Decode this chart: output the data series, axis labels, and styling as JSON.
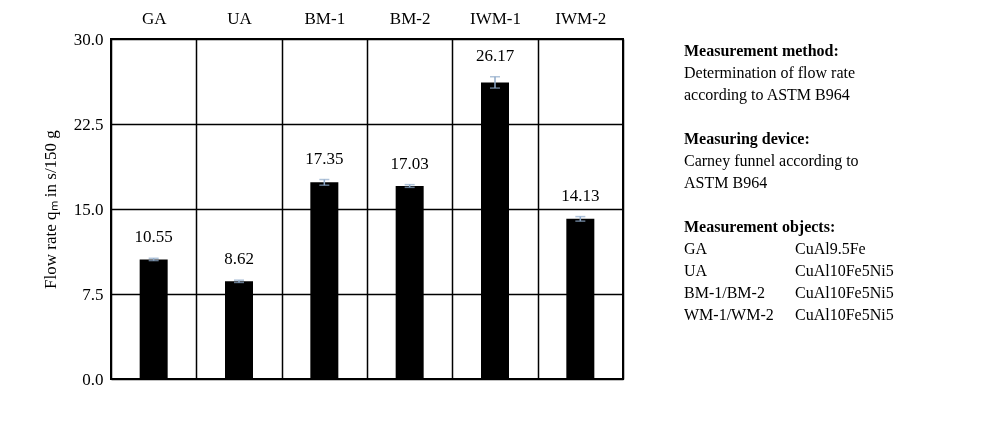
{
  "chart_data": {
    "type": "bar",
    "categories": [
      "GA",
      "UA",
      "BM-1",
      "BM-2",
      "IWM-1",
      "IWM-2"
    ],
    "values": [
      10.55,
      8.62,
      17.35,
      17.03,
      26.17,
      14.13
    ],
    "color": "#000000",
    "errors": [
      0.1,
      0.1,
      0.25,
      0.12,
      0.5,
      0.2
    ],
    "ylim": [
      0,
      30
    ],
    "yticks": [
      {
        "value": 0,
        "label": "0.0"
      },
      7.5,
      {
        "value": 15,
        "label": "15.0"
      },
      22.5,
      {
        "value": 30,
        "label": "30.0"
      }
    ],
    "ylabel": "Flow rate qₘ in s/150 g",
    "grid": true,
    "data_labels": true,
    "annotations": [
      "Measurement method:",
      "Determination of flow rate\naccording to ASTM B964",
      "Measuring device:",
      "Carney funnel according to\nASTM B964",
      "Measurement objects:",
      "GA\tCuAl9.5Fe\nUA\tCuAl10Fe5Ni5\nBM-1/BM-2\tCuAl10Fe5Ni5\nWM-1/WM-2\tCuAl10Fe5Ni5"
    ]
  }
}
